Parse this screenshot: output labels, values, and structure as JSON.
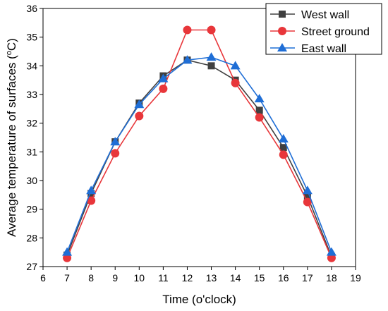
{
  "chart_data": {
    "type": "line",
    "xlabel": "Time (o'clock)",
    "ylabel_main": "Average temperature of surfaces (",
    "ylabel_sup": "o",
    "ylabel_unit": "C)",
    "xlim": [
      6,
      19
    ],
    "ylim": [
      27,
      36
    ],
    "xticks": [
      6,
      7,
      8,
      9,
      10,
      11,
      12,
      13,
      14,
      15,
      16,
      17,
      18,
      19
    ],
    "yticks": [
      27,
      28,
      29,
      30,
      31,
      32,
      33,
      34,
      35,
      36
    ],
    "x": [
      7,
      8,
      9,
      10,
      11,
      12,
      13,
      14,
      15,
      16,
      17,
      18
    ],
    "series": [
      {
        "name": "West wall",
        "marker": "square",
        "color": "#404040",
        "values": [
          27.4,
          29.55,
          31.35,
          32.7,
          33.65,
          34.2,
          34.0,
          33.5,
          32.45,
          31.15,
          29.45,
          27.35
        ]
      },
      {
        "name": "Street ground",
        "marker": "circle",
        "color": "#e8363a",
        "values": [
          27.3,
          29.3,
          30.95,
          32.25,
          33.2,
          35.25,
          35.25,
          33.4,
          32.2,
          30.9,
          29.25,
          27.3
        ]
      },
      {
        "name": "East wall",
        "marker": "triangle",
        "color": "#1f6ed6",
        "values": [
          27.5,
          29.65,
          31.35,
          32.65,
          33.55,
          34.2,
          34.3,
          34.0,
          32.85,
          31.45,
          29.65,
          27.5
        ]
      }
    ],
    "legend_position": "top-right",
    "grid": false
  }
}
